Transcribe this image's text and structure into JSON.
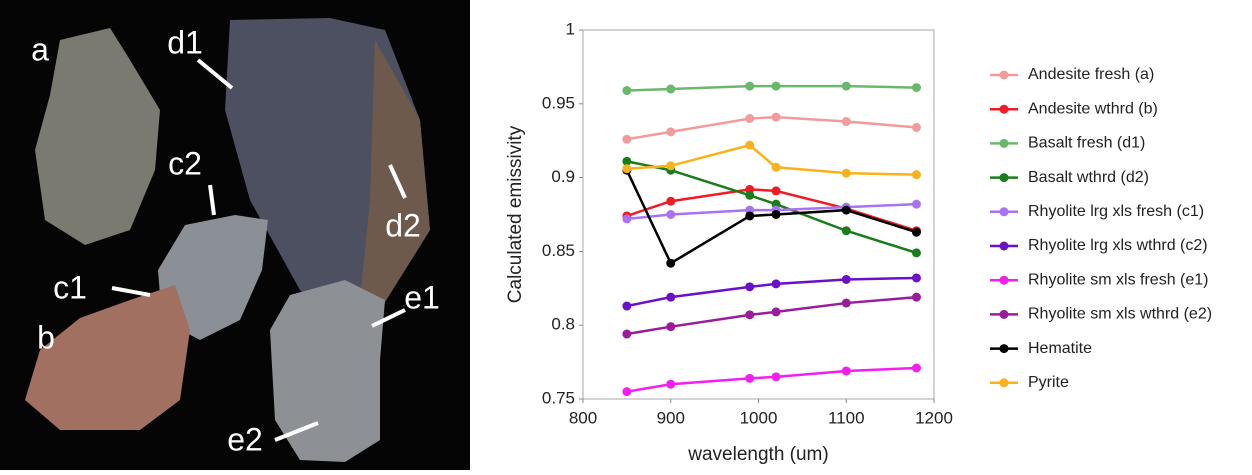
{
  "photo": {
    "labels": [
      "a",
      "b",
      "c1",
      "c2",
      "d1",
      "d2",
      "e1",
      "e2"
    ]
  },
  "chart_data": {
    "type": "line",
    "xlabel": "wavelength (um)",
    "ylabel": "Calculated emissivity",
    "x": [
      850,
      900,
      990,
      1020,
      1100,
      1180
    ],
    "xlim": [
      800,
      1200
    ],
    "xticks": [
      800,
      900,
      1000,
      1100,
      1200
    ],
    "ylim": [
      0.75,
      1
    ],
    "yticks": [
      0.75,
      0.8,
      0.85,
      0.9,
      0.95,
      1
    ],
    "grid": false,
    "legend": "right",
    "series": [
      {
        "name": "Andesite fresh (a)",
        "color": "#f29b9b",
        "values": [
          0.926,
          0.931,
          0.94,
          0.941,
          0.938,
          0.934
        ]
      },
      {
        "name": "Andesite wthrd (b)",
        "color": "#ee1c24",
        "values": [
          0.874,
          0.884,
          0.892,
          0.891,
          0.879,
          0.864
        ]
      },
      {
        "name": "Basalt fresh (d1)",
        "color": "#6ab86a",
        "values": [
          0.959,
          0.96,
          0.962,
          0.962,
          0.962,
          0.961
        ]
      },
      {
        "name": "Basalt wthrd (d2)",
        "color": "#1a7d1a",
        "values": [
          0.911,
          0.905,
          0.888,
          0.882,
          0.864,
          0.849
        ]
      },
      {
        "name": "Rhyolite lrg xls fresh (c1)",
        "color": "#a872f0",
        "values": [
          0.872,
          0.875,
          0.878,
          0.878,
          0.88,
          0.882
        ]
      },
      {
        "name": "Rhyolite lrg xls wthrd (c2)",
        "color": "#6a10c8",
        "values": [
          0.813,
          0.819,
          0.826,
          0.828,
          0.831,
          0.832
        ]
      },
      {
        "name": "Rhyolite sm xls fresh (e1)",
        "color": "#f51ef0",
        "values": [
          0.755,
          0.76,
          0.764,
          0.765,
          0.769,
          0.771
        ]
      },
      {
        "name": "Rhyolite sm xls wthrd (e2)",
        "color": "#9b1c9b",
        "values": [
          0.794,
          0.799,
          0.807,
          0.809,
          0.815,
          0.819
        ]
      },
      {
        "name": "Hematite",
        "color": "#000000",
        "values": [
          0.905,
          0.842,
          0.874,
          0.875,
          0.878,
          0.863
        ]
      },
      {
        "name": "Pyrite",
        "color": "#f9b21b",
        "values": [
          0.906,
          0.908,
          0.922,
          0.907,
          0.903,
          0.902
        ]
      }
    ]
  }
}
